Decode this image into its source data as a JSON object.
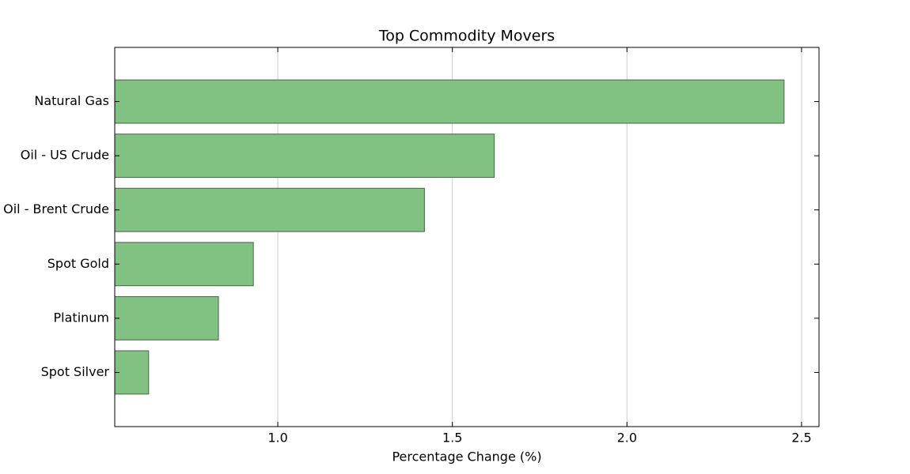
{
  "chart_data": {
    "type": "barh",
    "title": "Top Commodity Movers",
    "xlabel": "Percentage Change (%)",
    "categories": [
      "Natural Gas",
      "Oil - US Crude",
      "Oil - Brent Crude",
      "Spot Gold",
      "Platinum",
      "Spot Silver"
    ],
    "values": [
      2.45,
      1.62,
      1.42,
      0.93,
      0.83,
      0.63
    ],
    "color": "#81c182",
    "edgecolor": "#4a634a",
    "xlim": [
      0.533,
      2.55
    ],
    "xticks": [
      {
        "value": 1.0,
        "label": "1.0"
      },
      {
        "value": 1.5,
        "label": "1.5"
      },
      {
        "value": 2.0,
        "label": "2.0"
      },
      {
        "value": 2.5,
        "label": "2.5"
      }
    ],
    "grid": true
  }
}
